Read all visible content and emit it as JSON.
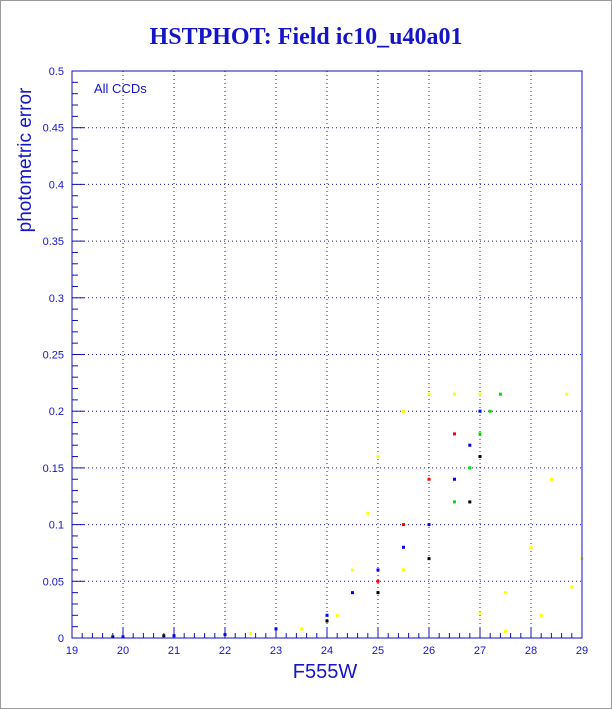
{
  "title": "HSTPHOT: Field ic10_u40a01",
  "chart_data": {
    "type": "scatter",
    "title": "HSTPHOT: Field ic10_u40a01",
    "xlabel": "F555W",
    "ylabel": "photometric error",
    "annotation": "All CCDs",
    "xlim": [
      19,
      29
    ],
    "ylim": [
      0,
      0.5
    ],
    "x_ticks": [
      19,
      20,
      21,
      22,
      23,
      24,
      25,
      26,
      27,
      28,
      29
    ],
    "y_ticks": [
      0,
      0.05,
      0.1,
      0.15,
      0.2,
      0.25,
      0.3,
      0.35,
      0.4,
      0.45,
      0.5
    ],
    "grid": true,
    "colors": {
      "axes": "#1010c0",
      "grid": "#1010c0",
      "labels": "#1515c8",
      "title": "#1515c8",
      "point_colors": [
        "#ffff00",
        "#0000ff",
        "#00dd00",
        "#000000",
        "#ff0000"
      ]
    },
    "series": [
      {
        "color": "#ffff00",
        "points": [
          [
            22.5,
            0.004
          ],
          [
            23.5,
            0.008
          ],
          [
            24.2,
            0.02
          ],
          [
            24.5,
            0.06
          ],
          [
            24.8,
            0.11
          ],
          [
            25.0,
            0.16
          ],
          [
            25.5,
            0.2
          ],
          [
            26.0,
            0.215
          ],
          [
            26.5,
            0.215
          ],
          [
            27.0,
            0.215
          ],
          [
            25.5,
            0.06
          ],
          [
            26.0,
            0.1
          ],
          [
            26.5,
            0.14
          ],
          [
            26.8,
            0.17
          ],
          [
            27.0,
            0.022
          ],
          [
            27.5,
            0.04
          ],
          [
            28.0,
            0.08
          ],
          [
            28.4,
            0.14
          ],
          [
            28.7,
            0.215
          ],
          [
            27.5,
            0.006
          ],
          [
            28.2,
            0.02
          ],
          [
            28.8,
            0.045
          ],
          [
            29.0,
            0.07
          ]
        ]
      },
      {
        "color": "#0000ff",
        "points": [
          [
            20.0,
            0.001
          ],
          [
            21.0,
            0.002
          ],
          [
            22.0,
            0.003
          ],
          [
            23.0,
            0.008
          ],
          [
            24.0,
            0.02
          ],
          [
            24.5,
            0.04
          ],
          [
            25.0,
            0.06
          ],
          [
            25.5,
            0.08
          ],
          [
            26.0,
            0.1
          ],
          [
            26.5,
            0.14
          ],
          [
            26.8,
            0.17
          ],
          [
            27.0,
            0.2
          ]
        ]
      },
      {
        "color": "#00dd00",
        "points": [
          [
            26.5,
            0.12
          ],
          [
            26.8,
            0.15
          ],
          [
            27.0,
            0.18
          ],
          [
            27.2,
            0.2
          ],
          [
            27.4,
            0.215
          ]
        ]
      },
      {
        "color": "#000000",
        "points": [
          [
            19.8,
            0.001
          ],
          [
            20.8,
            0.002
          ],
          [
            24.0,
            0.015
          ],
          [
            25.0,
            0.04
          ],
          [
            26.0,
            0.07
          ],
          [
            26.8,
            0.12
          ],
          [
            27.0,
            0.16
          ]
        ]
      },
      {
        "color": "#ff0000",
        "points": [
          [
            25.5,
            0.1
          ],
          [
            26.5,
            0.18
          ],
          [
            25.0,
            0.05
          ],
          [
            26.0,
            0.14
          ]
        ]
      }
    ]
  }
}
